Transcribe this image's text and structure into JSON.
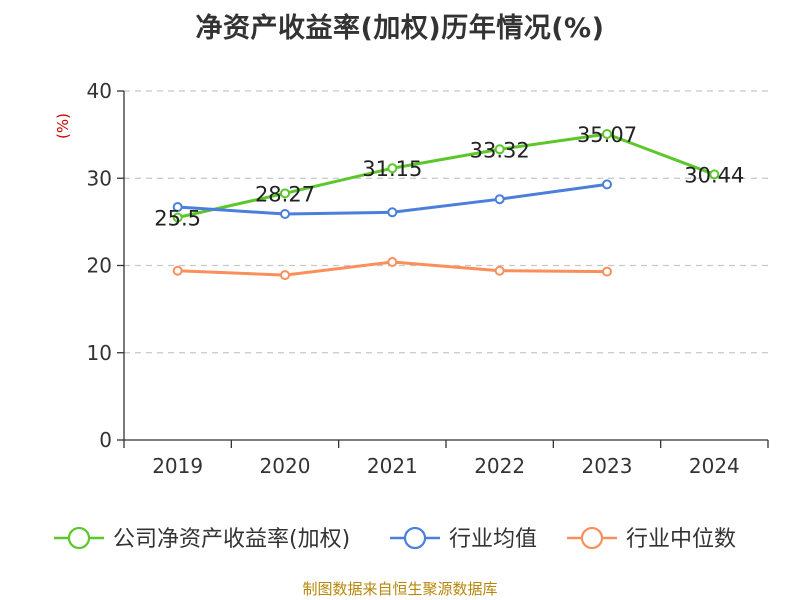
{
  "chart_data": {
    "type": "line",
    "title": "净资产收益率(加权)历年情况(%)",
    "ylabel": "(%)",
    "xlabel": "",
    "categories": [
      "2019",
      "2020",
      "2021",
      "2022",
      "2023",
      "2024"
    ],
    "ylim": [
      0,
      40
    ],
    "yticks": [
      0,
      10,
      20,
      30,
      40
    ],
    "grid": "horizontal-dashed",
    "legend_position": "bottom",
    "series": [
      {
        "name": "公司净资产收益率(加权)",
        "color": "#5cc72b",
        "values": [
          25.5,
          28.27,
          31.15,
          33.32,
          35.07,
          30.44
        ],
        "data_labels": [
          "25.5",
          "28.27",
          "31.15",
          "33.32",
          "35.07",
          "30.44"
        ]
      },
      {
        "name": "行业均值",
        "color": "#4a7fdb",
        "values": [
          26.7,
          25.9,
          26.1,
          27.6,
          29.3,
          null
        ],
        "data_labels": null
      },
      {
        "name": "行业中位数",
        "color": "#f98f5a",
        "values": [
          19.4,
          18.9,
          20.4,
          19.4,
          19.3,
          null
        ],
        "data_labels": null
      }
    ]
  },
  "source_note": "制图数据来自恒生聚源数据库",
  "colors": {
    "axis": "#333333",
    "grid": "#c8c8c8",
    "ylabel": "#cc0000",
    "source": "#b8860b"
  }
}
